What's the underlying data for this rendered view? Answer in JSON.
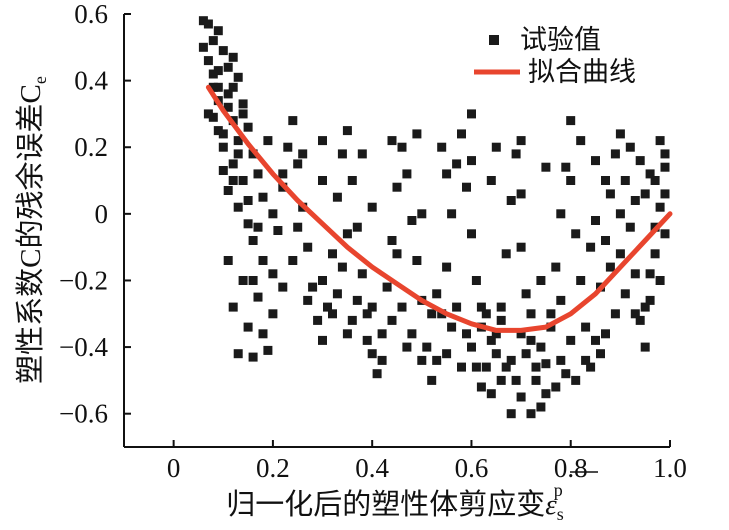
{
  "chart_data": {
    "type": "scatter",
    "xlabel": "归一化后的塑性体剪应变",
    "xlabel_symbol": "ε",
    "xlabel_sub": "s",
    "xlabel_sup": "p",
    "ylabel": "塑性系数C的残余误差C",
    "ylabel_sub": "e",
    "xlim": [
      -0.1,
      1.0
    ],
    "ylim": [
      -0.7,
      0.6
    ],
    "xticks": [
      "0",
      "0.2",
      "0.4",
      "0.6",
      "0.8",
      "1.0"
    ],
    "yticks": [
      "0.6",
      "0.4",
      "0.2",
      "0",
      "−0.2",
      "−0.4",
      "−0.6"
    ],
    "legend": {
      "position": "top-right",
      "entries": [
        {
          "label": "试验值",
          "marker": "square"
        },
        {
          "label": "拟合曲线",
          "marker": "line"
        }
      ]
    },
    "colors": {
      "points": "#1a1a1a",
      "fit": "#e8452e",
      "axis": "#111111"
    },
    "fit_curve": {
      "name": "拟合曲线",
      "x": [
        0.07,
        0.1,
        0.15,
        0.2,
        0.25,
        0.3,
        0.35,
        0.4,
        0.45,
        0.5,
        0.55,
        0.6,
        0.65,
        0.7,
        0.75,
        0.8,
        0.85,
        0.9,
        0.95,
        1.0
      ],
      "y": [
        0.38,
        0.31,
        0.21,
        0.12,
        0.04,
        -0.03,
        -0.1,
        -0.16,
        -0.21,
        -0.26,
        -0.3,
        -0.33,
        -0.35,
        -0.35,
        -0.34,
        -0.3,
        -0.24,
        -0.16,
        -0.08,
        0.0
      ]
    },
    "scatter": {
      "name": "试验值",
      "points": [
        [
          0.06,
          0.58
        ],
        [
          0.07,
          0.57
        ],
        [
          0.08,
          0.52
        ],
        [
          0.09,
          0.55
        ],
        [
          0.06,
          0.5
        ],
        [
          0.07,
          0.46
        ],
        [
          0.08,
          0.42
        ],
        [
          0.1,
          0.49
        ],
        [
          0.11,
          0.44
        ],
        [
          0.12,
          0.47
        ],
        [
          0.13,
          0.41
        ],
        [
          0.09,
          0.38
        ],
        [
          0.11,
          0.36
        ],
        [
          0.14,
          0.33
        ],
        [
          0.07,
          0.3
        ],
        [
          0.09,
          0.25
        ],
        [
          0.12,
          0.28
        ],
        [
          0.13,
          0.22
        ],
        [
          0.15,
          0.26
        ],
        [
          0.1,
          0.2
        ],
        [
          0.12,
          0.15
        ],
        [
          0.14,
          0.1
        ],
        [
          0.16,
          0.18
        ],
        [
          0.17,
          0.12
        ],
        [
          0.18,
          0.05
        ],
        [
          0.11,
          0.07
        ],
        [
          0.13,
          0.02
        ],
        [
          0.15,
          -0.03
        ],
        [
          0.16,
          -0.08
        ],
        [
          0.18,
          -0.14
        ],
        [
          0.14,
          -0.2
        ],
        [
          0.17,
          -0.25
        ],
        [
          0.12,
          -0.28
        ],
        [
          0.13,
          -0.42
        ],
        [
          0.16,
          -0.43
        ],
        [
          0.19,
          -0.41
        ],
        [
          0.15,
          -0.34
        ],
        [
          0.2,
          -0.18
        ],
        [
          0.21,
          -0.05
        ],
        [
          0.22,
          0.08
        ],
        [
          0.23,
          0.2
        ],
        [
          0.24,
          0.28
        ],
        [
          0.25,
          0.15
        ],
        [
          0.26,
          0.02
        ],
        [
          0.27,
          -0.1
        ],
        [
          0.28,
          -0.22
        ],
        [
          0.29,
          -0.32
        ],
        [
          0.3,
          -0.38
        ],
        [
          0.31,
          -0.28
        ],
        [
          0.32,
          -0.12
        ],
        [
          0.33,
          0.05
        ],
        [
          0.34,
          0.18
        ],
        [
          0.35,
          0.25
        ],
        [
          0.36,
          0.1
        ],
        [
          0.37,
          -0.04
        ],
        [
          0.38,
          -0.18
        ],
        [
          0.39,
          -0.3
        ],
        [
          0.4,
          -0.42
        ],
        [
          0.41,
          -0.48
        ],
        [
          0.42,
          -0.36
        ],
        [
          0.43,
          -0.22
        ],
        [
          0.44,
          -0.08
        ],
        [
          0.45,
          0.08
        ],
        [
          0.46,
          0.2
        ],
        [
          0.47,
          0.12
        ],
        [
          0.48,
          -0.02
        ],
        [
          0.49,
          -0.14
        ],
        [
          0.5,
          -0.26
        ],
        [
          0.51,
          -0.4
        ],
        [
          0.52,
          -0.5
        ],
        [
          0.53,
          -0.44
        ],
        [
          0.54,
          -0.3
        ],
        [
          0.55,
          -0.16
        ],
        [
          0.56,
          0.0
        ],
        [
          0.57,
          0.15
        ],
        [
          0.58,
          0.24
        ],
        [
          0.59,
          0.08
        ],
        [
          0.6,
          -0.06
        ],
        [
          0.61,
          -0.2
        ],
        [
          0.62,
          -0.34
        ],
        [
          0.63,
          -0.46
        ],
        [
          0.64,
          -0.54
        ],
        [
          0.65,
          -0.42
        ],
        [
          0.66,
          -0.28
        ],
        [
          0.67,
          -0.12
        ],
        [
          0.68,
          0.04
        ],
        [
          0.69,
          0.18
        ],
        [
          0.7,
          -0.1
        ],
        [
          0.71,
          -0.24
        ],
        [
          0.72,
          -0.38
        ],
        [
          0.73,
          -0.5
        ],
        [
          0.74,
          -0.58
        ],
        [
          0.75,
          -0.45
        ],
        [
          0.76,
          -0.3
        ],
        [
          0.77,
          -0.16
        ],
        [
          0.78,
          0.0
        ],
        [
          0.79,
          0.14
        ],
        [
          0.8,
          0.28
        ],
        [
          0.81,
          -0.06
        ],
        [
          0.82,
          -0.2
        ],
        [
          0.83,
          -0.34
        ],
        [
          0.84,
          -0.46
        ],
        [
          0.85,
          -0.38
        ],
        [
          0.86,
          -0.22
        ],
        [
          0.87,
          -0.08
        ],
        [
          0.88,
          0.06
        ],
        [
          0.89,
          0.18
        ],
        [
          0.9,
          0.24
        ],
        [
          0.91,
          0.1
        ],
        [
          0.92,
          -0.04
        ],
        [
          0.93,
          -0.18
        ],
        [
          0.94,
          -0.32
        ],
        [
          0.95,
          -0.4
        ],
        [
          0.96,
          -0.26
        ],
        [
          0.97,
          -0.12
        ],
        [
          0.98,
          0.02
        ],
        [
          0.99,
          0.14
        ],
        [
          0.99,
          -0.06
        ],
        [
          0.98,
          -0.2
        ],
        [
          0.97,
          0.1
        ],
        [
          0.7,
          -0.55
        ],
        [
          0.68,
          -0.6
        ],
        [
          0.72,
          -0.6
        ],
        [
          0.66,
          -0.5
        ],
        [
          0.62,
          -0.52
        ],
        [
          0.58,
          -0.46
        ],
        [
          0.55,
          -0.42
        ],
        [
          0.6,
          -0.4
        ],
        [
          0.64,
          -0.38
        ],
        [
          0.68,
          -0.44
        ],
        [
          0.74,
          -0.4
        ],
        [
          0.78,
          -0.44
        ],
        [
          0.8,
          -0.38
        ],
        [
          0.76,
          -0.34
        ],
        [
          0.72,
          -0.3
        ],
        [
          0.7,
          -0.36
        ],
        [
          0.66,
          -0.32
        ],
        [
          0.62,
          -0.28
        ],
        [
          0.56,
          -0.34
        ],
        [
          0.52,
          -0.3
        ],
        [
          0.48,
          -0.36
        ],
        [
          0.44,
          -0.32
        ],
        [
          0.4,
          -0.28
        ],
        [
          0.36,
          -0.32
        ],
        [
          0.33,
          -0.24
        ],
        [
          0.3,
          -0.2
        ],
        [
          0.27,
          -0.26
        ],
        [
          0.24,
          -0.14
        ],
        [
          0.22,
          -0.22
        ],
        [
          0.2,
          -0.3
        ],
        [
          0.18,
          -0.36
        ],
        [
          0.16,
          -0.2
        ],
        [
          0.2,
          0.0
        ],
        [
          0.25,
          -0.04
        ],
        [
          0.3,
          0.1
        ],
        [
          0.35,
          -0.06
        ],
        [
          0.4,
          0.02
        ],
        [
          0.45,
          -0.12
        ],
        [
          0.5,
          0.0
        ],
        [
          0.55,
          0.12
        ],
        [
          0.6,
          0.16
        ],
        [
          0.65,
          0.2
        ],
        [
          0.7,
          0.06
        ],
        [
          0.75,
          0.14
        ],
        [
          0.8,
          0.1
        ],
        [
          0.85,
          0.16
        ],
        [
          0.9,
          -0.12
        ],
        [
          0.95,
          0.06
        ],
        [
          0.92,
          0.2
        ],
        [
          0.88,
          -0.16
        ],
        [
          0.84,
          -0.1
        ],
        [
          0.82,
          0.22
        ],
        [
          0.78,
          -0.26
        ],
        [
          0.74,
          -0.2
        ],
        [
          0.7,
          0.22
        ],
        [
          0.64,
          0.1
        ],
        [
          0.6,
          0.3
        ],
        [
          0.54,
          0.2
        ],
        [
          0.49,
          0.24
        ],
        [
          0.44,
          0.22
        ],
        [
          0.38,
          0.18
        ],
        [
          0.34,
          -0.16
        ],
        [
          0.3,
          0.22
        ],
        [
          0.26,
          0.18
        ],
        [
          0.22,
          0.12
        ],
        [
          0.19,
          0.22
        ],
        [
          0.17,
          -0.04
        ],
        [
          0.15,
          0.04
        ],
        [
          0.14,
          0.3
        ],
        [
          0.11,
          0.32
        ],
        [
          0.09,
          0.34
        ],
        [
          0.08,
          0.29
        ],
        [
          0.1,
          0.24
        ],
        [
          0.12,
          0.1
        ],
        [
          0.13,
          0.18
        ],
        [
          0.1,
          0.13
        ],
        [
          0.11,
          -0.14
        ],
        [
          0.09,
          0.43
        ],
        [
          0.08,
          0.38
        ],
        [
          0.12,
          0.38
        ],
        [
          0.95,
          -0.28
        ],
        [
          0.96,
          -0.18
        ],
        [
          0.93,
          -0.3
        ],
        [
          0.91,
          -0.24
        ],
        [
          0.89,
          -0.3
        ],
        [
          0.87,
          -0.36
        ],
        [
          0.86,
          -0.42
        ],
        [
          0.83,
          -0.44
        ],
        [
          0.81,
          -0.5
        ],
        [
          0.79,
          -0.48
        ],
        [
          0.77,
          -0.52
        ],
        [
          0.75,
          -0.54
        ],
        [
          0.73,
          -0.46
        ],
        [
          0.71,
          -0.42
        ],
        [
          0.69,
          -0.5
        ],
        [
          0.67,
          -0.46
        ],
        [
          0.65,
          -0.36
        ],
        [
          0.63,
          -0.3
        ],
        [
          0.61,
          -0.46
        ],
        [
          0.59,
          -0.36
        ],
        [
          0.57,
          -0.28
        ],
        [
          0.53,
          -0.24
        ],
        [
          0.5,
          -0.44
        ],
        [
          0.47,
          -0.4
        ],
        [
          0.46,
          -0.28
        ],
        [
          0.42,
          -0.44
        ],
        [
          0.39,
          -0.38
        ],
        [
          0.37,
          -0.26
        ],
        [
          0.35,
          -0.36
        ],
        [
          0.32,
          -0.3
        ],
        [
          0.99,
          0.06
        ],
        [
          0.99,
          0.18
        ],
        [
          0.98,
          0.22
        ],
        [
          0.97,
          -0.04
        ],
        [
          0.96,
          0.12
        ],
        [
          0.94,
          0.16
        ],
        [
          0.93,
          0.04
        ],
        [
          0.9,
          0.0
        ],
        [
          0.87,
          0.1
        ],
        [
          0.85,
          -0.02
        ]
      ]
    }
  }
}
